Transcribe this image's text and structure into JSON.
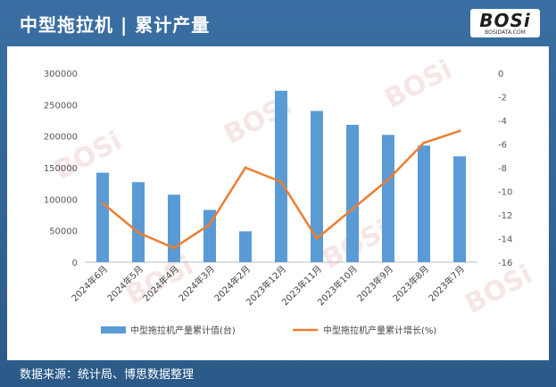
{
  "header": {
    "title": "中型拖拉机 | 累计产量",
    "logo_main": "BOSi",
    "logo_sub": "BOSIDATA.COM"
  },
  "footer": {
    "source": "数据来源：统计局、博思数据整理"
  },
  "colors": {
    "bar": "#5b9bd5",
    "line": "#ed7d31",
    "header_bg": "#3a6fa3"
  },
  "chart_data": {
    "type": "bar",
    "categories": [
      "2024年6月",
      "2024年5月",
      "2024年4月",
      "2024年3月",
      "2024年2月",
      "2023年12月",
      "2023年11月",
      "2023年10月",
      "2023年9月",
      "2023年8月",
      "2023年7月"
    ],
    "series": [
      {
        "name": "中型拖拉机产量累计值(台)",
        "type": "bar",
        "axis": "left",
        "values": [
          142000,
          127000,
          107000,
          83000,
          49000,
          272000,
          240000,
          218000,
          202000,
          185000,
          168000
        ]
      },
      {
        "name": "中型拖拉机产量累计增长(%)",
        "type": "line",
        "axis": "right",
        "values": [
          -11.0,
          -13.5,
          -14.8,
          -12.8,
          -8.0,
          -9.2,
          -14.0,
          -11.5,
          -9.0,
          -5.9,
          -4.9
        ]
      }
    ],
    "y_left": {
      "ylim": [
        0,
        300000
      ],
      "ticks": [
        "300000",
        "250000",
        "200000",
        "150000",
        "100000",
        "50000",
        "0"
      ]
    },
    "y_right": {
      "ylim": [
        -16,
        0
      ],
      "ticks": [
        "0",
        "-2",
        "-4",
        "-6",
        "-8",
        "-10",
        "-12",
        "-14",
        "-16"
      ]
    },
    "legend": "bottom",
    "grid": false
  }
}
